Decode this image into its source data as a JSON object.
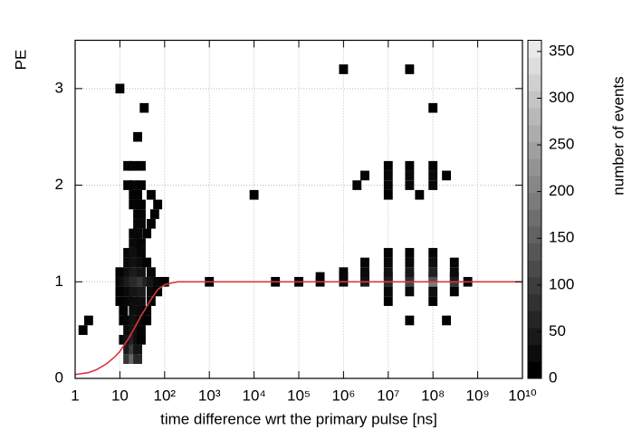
{
  "chart_data": {
    "type": "heatmap",
    "x_label": "time difference wrt the primary pulse [ns]",
    "y_label": "PE",
    "colorbar_label": "number of events",
    "log_x": true,
    "grid": true,
    "xlim": [
      1,
      10000000000.0
    ],
    "ylim": [
      0,
      3.5
    ],
    "zlim": [
      0,
      362
    ],
    "xticks": [
      1,
      10,
      {
        "value": 100,
        "label": "10²"
      },
      {
        "value": 1000,
        "label": "10³"
      },
      {
        "value": 10000,
        "label": "10⁴"
      },
      {
        "value": 100000,
        "label": "10⁵"
      },
      {
        "value": 1000000,
        "label": "10⁶"
      },
      {
        "value": 10000000,
        "label": "10⁷"
      },
      {
        "value": 100000000,
        "label": "10⁸"
      },
      {
        "value": 1000000000,
        "label": "10⁹"
      },
      {
        "value": 10000000000,
        "label": "10¹⁰"
      }
    ],
    "yticks": [
      0,
      1,
      2,
      3
    ],
    "zticks": [
      0,
      50,
      100,
      150,
      200,
      250,
      300,
      350
    ],
    "cells": [
      [
        15,
        0.2,
        80
      ],
      [
        20,
        0.2,
        150
      ],
      [
        25,
        0.2,
        60
      ],
      [
        15,
        0.3,
        40
      ],
      [
        20,
        0.3,
        90
      ],
      [
        25,
        0.3,
        30
      ],
      [
        12,
        0.4,
        10
      ],
      [
        15,
        0.4,
        30
      ],
      [
        20,
        0.4,
        50
      ],
      [
        25,
        0.4,
        20
      ],
      [
        30,
        0.4,
        5
      ],
      [
        15,
        0.5,
        15
      ],
      [
        20,
        0.5,
        30
      ],
      [
        25,
        0.5,
        25
      ],
      [
        30,
        0.5,
        8
      ],
      [
        12,
        0.6,
        5
      ],
      [
        15,
        0.6,
        10
      ],
      [
        20,
        0.6,
        25
      ],
      [
        30,
        0.6,
        10
      ],
      [
        40,
        0.6,
        3
      ],
      [
        12,
        0.7,
        5
      ],
      [
        20,
        0.7,
        20
      ],
      [
        30,
        0.7,
        15
      ],
      [
        40,
        0.7,
        5
      ],
      [
        10,
        0.8,
        3
      ],
      [
        15,
        0.8,
        8
      ],
      [
        20,
        0.8,
        18
      ],
      [
        30,
        0.8,
        20
      ],
      [
        50,
        0.8,
        5
      ],
      [
        10,
        0.9,
        5
      ],
      [
        15,
        0.9,
        15
      ],
      [
        20,
        0.9,
        30
      ],
      [
        30,
        0.9,
        40
      ],
      [
        50,
        0.9,
        15
      ],
      [
        70,
        0.9,
        3
      ],
      [
        10,
        1.0,
        10
      ],
      [
        12,
        1.0,
        20
      ],
      [
        15,
        1.0,
        40
      ],
      [
        20,
        1.0,
        60
      ],
      [
        30,
        1.0,
        80
      ],
      [
        40,
        1.0,
        50
      ],
      [
        50,
        1.0,
        30
      ],
      [
        70,
        1.0,
        10
      ],
      [
        100,
        1.0,
        3
      ],
      [
        10,
        1.1,
        5
      ],
      [
        15,
        1.1,
        20
      ],
      [
        20,
        1.1,
        40
      ],
      [
        30,
        1.1,
        30
      ],
      [
        50,
        1.1,
        10
      ],
      [
        15,
        1.2,
        15
      ],
      [
        20,
        1.2,
        25
      ],
      [
        30,
        1.2,
        15
      ],
      [
        40,
        1.2,
        5
      ],
      [
        15,
        1.3,
        10
      ],
      [
        20,
        1.3,
        20
      ],
      [
        30,
        1.3,
        10
      ],
      [
        20,
        1.4,
        15
      ],
      [
        25,
        1.4,
        15
      ],
      [
        30,
        1.4,
        8
      ],
      [
        20,
        1.5,
        10
      ],
      [
        25,
        1.5,
        12
      ],
      [
        40,
        1.5,
        5
      ],
      [
        25,
        1.6,
        10
      ],
      [
        30,
        1.6,
        10
      ],
      [
        50,
        1.6,
        5
      ],
      [
        25,
        1.7,
        6
      ],
      [
        30,
        1.7,
        8
      ],
      [
        60,
        1.7,
        3
      ],
      [
        20,
        1.8,
        5
      ],
      [
        30,
        1.8,
        5
      ],
      [
        70,
        1.8,
        3
      ],
      [
        20,
        1.9,
        8
      ],
      [
        25,
        1.9,
        5
      ],
      [
        50,
        1.9,
        3
      ],
      [
        15,
        2.0,
        5
      ],
      [
        20,
        2.0,
        8
      ],
      [
        30,
        2.0,
        4
      ],
      [
        15,
        2.2,
        4
      ],
      [
        20,
        2.2,
        6
      ],
      [
        30,
        2.2,
        5
      ],
      [
        25,
        2.5,
        3
      ],
      [
        35,
        2.8,
        2
      ],
      [
        10,
        3.0,
        1
      ],
      [
        2,
        0.6,
        1
      ],
      [
        1.5,
        0.5,
        1
      ],
      [
        100000,
        1.0,
        3
      ],
      [
        300000,
        1.0,
        8
      ],
      [
        1000000,
        1.0,
        20
      ],
      [
        3000000,
        1.0,
        35
      ],
      [
        10000000,
        1.0,
        60
      ],
      [
        30000000,
        1.0,
        100
      ],
      [
        100000000,
        1.0,
        180
      ],
      [
        300000000,
        1.0,
        80
      ],
      [
        600000000,
        1.0,
        10
      ],
      [
        300000,
        1.05,
        5
      ],
      [
        1000000,
        1.05,
        15
      ],
      [
        3000000,
        1.05,
        25
      ],
      [
        10000000,
        1.05,
        45
      ],
      [
        30000000,
        1.05,
        70
      ],
      [
        100000000,
        1.05,
        120
      ],
      [
        300000000,
        1.05,
        40
      ],
      [
        1000000,
        1.1,
        10
      ],
      [
        3000000,
        1.1,
        15
      ],
      [
        10000000,
        1.1,
        25
      ],
      [
        30000000,
        1.1,
        35
      ],
      [
        100000000,
        1.1,
        50
      ],
      [
        300000000,
        1.1,
        15
      ],
      [
        3000000,
        1.2,
        8
      ],
      [
        10000000,
        1.2,
        12
      ],
      [
        30000000,
        1.2,
        15
      ],
      [
        100000000,
        1.2,
        20
      ],
      [
        300000000,
        1.2,
        6
      ],
      [
        10000000,
        1.3,
        5
      ],
      [
        30000000,
        1.3,
        8
      ],
      [
        100000000,
        1.3,
        8
      ],
      [
        10000000,
        0.9,
        10
      ],
      [
        30000000,
        0.9,
        15
      ],
      [
        100000000,
        0.9,
        20
      ],
      [
        300000000,
        0.9,
        6
      ],
      [
        10000000,
        0.8,
        2
      ],
      [
        100000000,
        0.8,
        3
      ],
      [
        30000000,
        0.6,
        1
      ],
      [
        200000000,
        0.6,
        1
      ],
      [
        2000000,
        2.0,
        3
      ],
      [
        10000000,
        2.0,
        8
      ],
      [
        30000000,
        2.0,
        12
      ],
      [
        100000000,
        2.0,
        10
      ],
      [
        3000000,
        2.1,
        4
      ],
      [
        10000000,
        2.1,
        10
      ],
      [
        30000000,
        2.1,
        15
      ],
      [
        100000000,
        2.1,
        12
      ],
      [
        200000000,
        2.1,
        3
      ],
      [
        10000000,
        2.2,
        5
      ],
      [
        30000000,
        2.2,
        6
      ],
      [
        100000000,
        2.2,
        8
      ],
      [
        10000000,
        1.9,
        3
      ],
      [
        50000000,
        1.9,
        4
      ],
      [
        1000,
        1.0,
        1
      ],
      [
        30000,
        1.0,
        2
      ],
      [
        1000000,
        3.2,
        1
      ],
      [
        100000000,
        2.8,
        1
      ],
      [
        30000000,
        3.2,
        1
      ],
      [
        10000,
        1.9,
        1
      ]
    ],
    "curve": {
      "color": "#d9363e",
      "x": [
        1,
        2,
        3,
        5,
        8,
        10,
        15,
        20,
        30,
        50,
        70,
        100,
        150,
        200,
        1000,
        1000000000,
        10000000000
      ],
      "values": [
        0.04,
        0.06,
        0.09,
        0.15,
        0.23,
        0.28,
        0.4,
        0.5,
        0.65,
        0.82,
        0.92,
        0.97,
        0.99,
        1,
        1,
        1,
        1
      ]
    }
  }
}
